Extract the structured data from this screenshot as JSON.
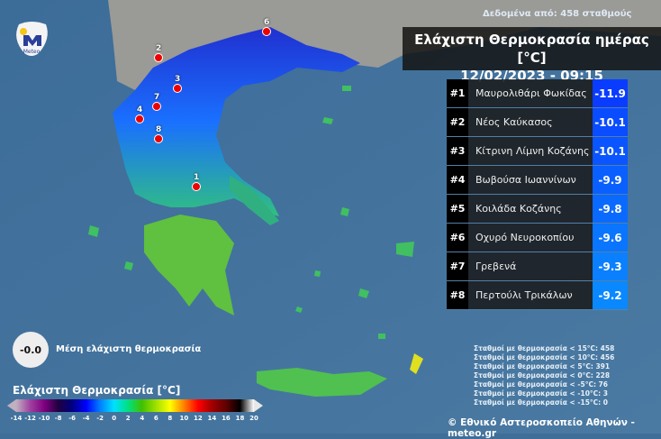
{
  "header": {
    "stations_note": "Δεδομένα από: 458 σταθμούς",
    "title": "Ελάχιστη Θερμοκρασία ημέρας [°C]",
    "datetime": "12/02/2023 - 09:15"
  },
  "logo": {
    "text": "Meteo",
    "colors": {
      "blue": "#2a3f9a",
      "sun": "#f5c518"
    }
  },
  "ranking": [
    {
      "rank": "#1",
      "station": "Μαυρολιθάρι Φωκίδας",
      "value": "-11.9",
      "color": "#0a3cff"
    },
    {
      "rank": "#2",
      "station": "Νέος Καύκασος",
      "value": "-10.1",
      "color": "#0a4cff"
    },
    {
      "rank": "#3",
      "station": "Κίτρινη Λίμνη Κοζάνης",
      "value": "-10.1",
      "color": "#0a55ff"
    },
    {
      "rank": "#4",
      "station": "Βωβούσα Ιωαννίνων",
      "value": "-9.9",
      "color": "#0a60ff"
    },
    {
      "rank": "#5",
      "station": "Κοιλάδα Κοζάνης",
      "value": "-9.8",
      "color": "#0a6aff"
    },
    {
      "rank": "#6",
      "station": "Οχυρό Νευροκοπίου",
      "value": "-9.6",
      "color": "#0a75ff"
    },
    {
      "rank": "#7",
      "station": "Γρεβενά",
      "value": "-9.3",
      "color": "#0a80ff"
    },
    {
      "rank": "#8",
      "station": "Περτούλι Τρικάλων",
      "value": "-9.2",
      "color": "#0a88ff"
    }
  ],
  "markers": [
    {
      "label": "1"
    },
    {
      "label": "2"
    },
    {
      "label": "3"
    },
    {
      "label": "4"
    },
    {
      "label": "6"
    },
    {
      "label": "7"
    },
    {
      "label": "8"
    }
  ],
  "mean": {
    "value": "-0.0",
    "label": "Μέση ελάχιστη θερμοκρασία"
  },
  "colorbar": {
    "title": "Ελάχιστη Θερμοκρασία [°C]",
    "ticks": [
      "-14",
      "-12",
      "-10",
      "-8",
      "-6",
      "-4",
      "-2",
      "0",
      "2",
      "4",
      "6",
      "8",
      "10",
      "12",
      "14",
      "16",
      "18",
      "20"
    ],
    "colors": [
      "#c0b0c0",
      "#a040a0",
      "#800080",
      "#200040",
      "#000080",
      "#0000ff",
      "#0080ff",
      "#00e0ff",
      "#00e080",
      "#40c000",
      "#a0e000",
      "#ffff00",
      "#ff8000",
      "#ff0000",
      "#a00000",
      "#600000",
      "#000000",
      "#ffffff"
    ]
  },
  "counts": [
    "Σταθμοί με θερμοκρασία < 15°C: 458",
    "Σταθμοί με θερμοκρασία < 10°C: 456",
    "Σταθμοί με θερμοκρασία < 5°C: 391",
    "Σταθμοί με θερμοκρασία < 0°C: 228",
    "Σταθμοί με θερμοκρασία < -5°C: 76",
    "Σταθμοί με θερμοκρασία < -10°C: 3",
    "Σταθμοί με θερμοκρασία < -15°C: 0"
  ],
  "credit": "© Εθνικό Αστεροσκοπείο Αθηνών - meteo.gr"
}
